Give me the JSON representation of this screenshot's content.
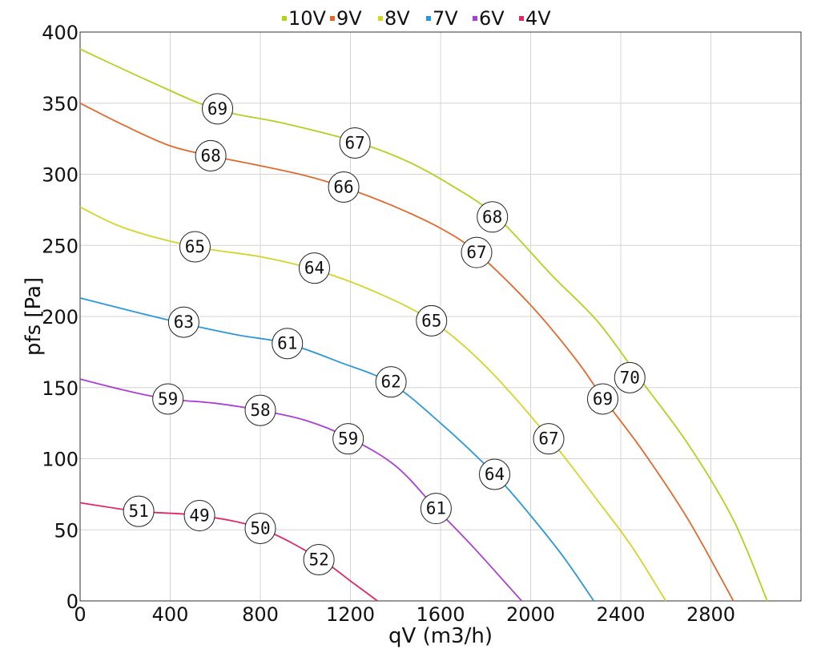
{
  "chart_data": {
    "type": "line",
    "xlabel": "qV (m3/h)",
    "ylabel": "pfs [Pa]",
    "xlim": [
      0,
      3200
    ],
    "ylim": [
      0,
      400
    ],
    "xticks": [
      0,
      400,
      800,
      1200,
      1600,
      2000,
      2400,
      2800
    ],
    "yticks": [
      0,
      50,
      100,
      150,
      200,
      250,
      300,
      350,
      400
    ],
    "grid": true,
    "legend_position": "top",
    "series": [
      {
        "name": "10V",
        "color": "#b5d11f",
        "points": [
          [
            0,
            388
          ],
          [
            300,
            366
          ],
          [
            600,
            346
          ],
          [
            900,
            336
          ],
          [
            1200,
            324
          ],
          [
            1440,
            310
          ],
          [
            1650,
            292
          ],
          [
            1850,
            270
          ],
          [
            2100,
            228
          ],
          [
            2300,
            196
          ],
          [
            2500,
            153
          ],
          [
            2700,
            110
          ],
          [
            2900,
            57
          ],
          [
            3050,
            0
          ]
        ],
        "labels": [
          {
            "x": 610,
            "y": 346,
            "text": "69"
          },
          {
            "x": 1220,
            "y": 322,
            "text": "67"
          },
          {
            "x": 1830,
            "y": 270,
            "text": "68"
          },
          {
            "x": 2440,
            "y": 157,
            "text": "70"
          }
        ]
      },
      {
        "name": "9V",
        "color": "#e06a2e",
        "points": [
          [
            0,
            350
          ],
          [
            200,
            334
          ],
          [
            400,
            320
          ],
          [
            580,
            313
          ],
          [
            800,
            306
          ],
          [
            1000,
            299
          ],
          [
            1170,
            291
          ],
          [
            1400,
            277
          ],
          [
            1600,
            262
          ],
          [
            1760,
            245
          ],
          [
            2000,
            208
          ],
          [
            2200,
            170
          ],
          [
            2320,
            143
          ],
          [
            2500,
            105
          ],
          [
            2700,
            57
          ],
          [
            2900,
            0
          ]
        ],
        "labels": [
          {
            "x": 580,
            "y": 313,
            "text": "68"
          },
          {
            "x": 1170,
            "y": 291,
            "text": "66"
          },
          {
            "x": 1760,
            "y": 245,
            "text": "67"
          },
          {
            "x": 2320,
            "y": 142,
            "text": "69"
          }
        ]
      },
      {
        "name": "8V",
        "color": "#d4d42a",
        "points": [
          [
            0,
            277
          ],
          [
            200,
            262
          ],
          [
            510,
            249
          ],
          [
            800,
            242
          ],
          [
            1040,
            233
          ],
          [
            1300,
            218
          ],
          [
            1560,
            197
          ],
          [
            1800,
            165
          ],
          [
            2080,
            115
          ],
          [
            2300,
            70
          ],
          [
            2450,
            38
          ],
          [
            2600,
            0
          ]
        ],
        "labels": [
          {
            "x": 510,
            "y": 249,
            "text": "65"
          },
          {
            "x": 1040,
            "y": 234,
            "text": "64"
          },
          {
            "x": 1560,
            "y": 197,
            "text": "65"
          },
          {
            "x": 2080,
            "y": 114,
            "text": "67"
          }
        ]
      },
      {
        "name": "7V",
        "color": "#2e97db",
        "points": [
          [
            0,
            213
          ],
          [
            250,
            203
          ],
          [
            460,
            195
          ],
          [
            700,
            187
          ],
          [
            920,
            181
          ],
          [
            1150,
            168
          ],
          [
            1380,
            153
          ],
          [
            1600,
            125
          ],
          [
            1840,
            89
          ],
          [
            2000,
            60
          ],
          [
            2150,
            30
          ],
          [
            2280,
            0
          ]
        ],
        "labels": [
          {
            "x": 460,
            "y": 196,
            "text": "63"
          },
          {
            "x": 920,
            "y": 181,
            "text": "61"
          },
          {
            "x": 1380,
            "y": 154,
            "text": "62"
          },
          {
            "x": 1840,
            "y": 89,
            "text": "64"
          }
        ]
      },
      {
        "name": "6V",
        "color": "#a93fd6",
        "points": [
          [
            0,
            156
          ],
          [
            200,
            148
          ],
          [
            390,
            142
          ],
          [
            600,
            139
          ],
          [
            800,
            134
          ],
          [
            1000,
            127
          ],
          [
            1190,
            115
          ],
          [
            1400,
            95
          ],
          [
            1580,
            65
          ],
          [
            1750,
            37
          ],
          [
            1960,
            0
          ]
        ],
        "labels": [
          {
            "x": 390,
            "y": 142,
            "text": "59"
          },
          {
            "x": 800,
            "y": 134,
            "text": "58"
          },
          {
            "x": 1190,
            "y": 114,
            "text": "59"
          },
          {
            "x": 1580,
            "y": 65,
            "text": "61"
          }
        ]
      },
      {
        "name": "4V",
        "color": "#e0286a",
        "points": [
          [
            0,
            69
          ],
          [
            260,
            63
          ],
          [
            530,
            60
          ],
          [
            800,
            51
          ],
          [
            1060,
            30
          ],
          [
            1200,
            14
          ],
          [
            1320,
            0
          ]
        ],
        "labels": [
          {
            "x": 260,
            "y": 63,
            "text": "51"
          },
          {
            "x": 530,
            "y": 60,
            "text": "49"
          },
          {
            "x": 800,
            "y": 51,
            "text": "50"
          },
          {
            "x": 1060,
            "y": 29,
            "text": "52"
          }
        ]
      }
    ]
  }
}
